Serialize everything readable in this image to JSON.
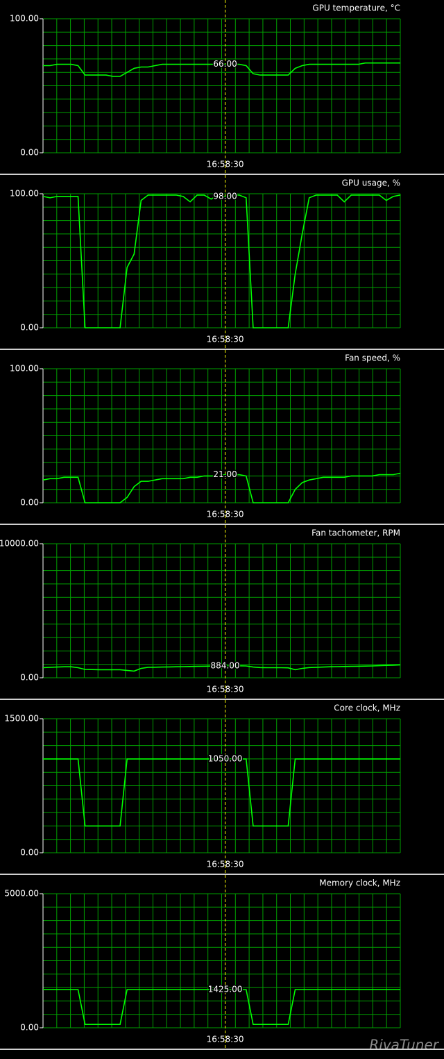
{
  "watermark": "RivaTuner",
  "chart_data": [
    {
      "type": "line",
      "title": "GPU temperature, °C",
      "ylim": [
        0,
        100
      ],
      "yticks": [
        {
          "value": 0,
          "label": "0.00"
        },
        {
          "value": 100,
          "label": "100.00"
        }
      ],
      "grid": true,
      "categories": [
        null,
        null,
        null,
        null,
        null,
        null,
        null,
        null,
        null,
        null,
        null,
        null,
        null,
        null,
        null,
        null,
        null,
        null,
        null,
        null,
        null,
        null,
        null,
        null,
        null,
        null,
        "16:58:30",
        null,
        null,
        null,
        null,
        null,
        null,
        null,
        null,
        null,
        null,
        null,
        null,
        null,
        null,
        null,
        null,
        null,
        null,
        null,
        null,
        null,
        null,
        null,
        null,
        null
      ],
      "series": [
        {
          "color": "#00ff00",
          "values": [
            65,
            65,
            66,
            66,
            66,
            65,
            58,
            58,
            58,
            58,
            57,
            57,
            60,
            63,
            64,
            64,
            65,
            66,
            66,
            66,
            66,
            66,
            66,
            66,
            66,
            66,
            66,
            66,
            66,
            65,
            59,
            58,
            58,
            58,
            58,
            58,
            63,
            65,
            66,
            66,
            66,
            66,
            66,
            66,
            66,
            66,
            67,
            67,
            67,
            67,
            67,
            67
          ],
          "value_labels": [
            null,
            null,
            null,
            null,
            null,
            null,
            null,
            null,
            null,
            null,
            null,
            null,
            null,
            null,
            null,
            null,
            null,
            null,
            null,
            null,
            null,
            null,
            null,
            null,
            null,
            null,
            "66.00",
            null,
            null,
            null,
            null,
            null,
            null,
            null,
            null,
            null,
            null,
            null,
            null,
            null,
            null,
            null,
            null,
            null,
            null,
            null,
            null,
            null,
            null,
            null,
            null,
            null
          ]
        }
      ]
    },
    {
      "type": "line",
      "title": "GPU usage, %",
      "ylim": [
        0,
        100
      ],
      "yticks": [
        {
          "value": 0,
          "label": "0.00"
        },
        {
          "value": 100,
          "label": "100.00"
        }
      ],
      "grid": true,
      "categories": [
        null,
        null,
        null,
        null,
        null,
        null,
        null,
        null,
        null,
        null,
        null,
        null,
        null,
        null,
        null,
        null,
        null,
        null,
        null,
        null,
        null,
        null,
        null,
        null,
        null,
        null,
        "16:58:30",
        null,
        null,
        null,
        null,
        null,
        null,
        null,
        null,
        null,
        null,
        null,
        null,
        null,
        null,
        null,
        null,
        null,
        null,
        null,
        null,
        null,
        null,
        null,
        null,
        null
      ],
      "series": [
        {
          "color": "#00ff00",
          "values": [
            98,
            97,
            98,
            98,
            98,
            98,
            0,
            0,
            0,
            0,
            0,
            0,
            45,
            55,
            95,
            99,
            99,
            99,
            99,
            99,
            98,
            94,
            99,
            99,
            96,
            99,
            98,
            99,
            99,
            97,
            0,
            0,
            0,
            0,
            0,
            0,
            40,
            70,
            97,
            99,
            99,
            99,
            99,
            94,
            99,
            99,
            99,
            99,
            99,
            95,
            98,
            99
          ],
          "value_labels": [
            null,
            null,
            null,
            null,
            null,
            null,
            null,
            null,
            null,
            null,
            null,
            null,
            null,
            null,
            null,
            null,
            null,
            null,
            null,
            null,
            null,
            null,
            null,
            null,
            null,
            null,
            "98.00",
            null,
            null,
            null,
            null,
            null,
            null,
            null,
            null,
            null,
            null,
            null,
            null,
            null,
            null,
            null,
            null,
            null,
            null,
            null,
            null,
            null,
            null,
            null,
            null,
            null
          ]
        }
      ]
    },
    {
      "type": "line",
      "title": "Fan speed, %",
      "ylim": [
        0,
        100
      ],
      "yticks": [
        {
          "value": 0,
          "label": "0.00"
        },
        {
          "value": 100,
          "label": "100.00"
        }
      ],
      "grid": true,
      "categories": [
        null,
        null,
        null,
        null,
        null,
        null,
        null,
        null,
        null,
        null,
        null,
        null,
        null,
        null,
        null,
        null,
        null,
        null,
        null,
        null,
        null,
        null,
        null,
        null,
        null,
        null,
        "16:58:30",
        null,
        null,
        null,
        null,
        null,
        null,
        null,
        null,
        null,
        null,
        null,
        null,
        null,
        null,
        null,
        null,
        null,
        null,
        null,
        null,
        null,
        null,
        null,
        null,
        null
      ],
      "series": [
        {
          "color": "#00ff00",
          "values": [
            17,
            18,
            18,
            19,
            19,
            19,
            0,
            0,
            0,
            0,
            0,
            0,
            4,
            12,
            16,
            16,
            17,
            18,
            18,
            18,
            18,
            19,
            19,
            20,
            20,
            20,
            21,
            21,
            21,
            20,
            0,
            0,
            0,
            0,
            0,
            0,
            10,
            15,
            17,
            18,
            19,
            19,
            19,
            19,
            20,
            20,
            20,
            20,
            21,
            21,
            21,
            22
          ],
          "value_labels": [
            null,
            null,
            null,
            null,
            null,
            null,
            null,
            null,
            null,
            null,
            null,
            null,
            null,
            null,
            null,
            null,
            null,
            null,
            null,
            null,
            null,
            null,
            null,
            null,
            null,
            null,
            "21.00",
            null,
            null,
            null,
            null,
            null,
            null,
            null,
            null,
            null,
            null,
            null,
            null,
            null,
            null,
            null,
            null,
            null,
            null,
            null,
            null,
            null,
            null,
            null,
            null,
            null
          ]
        }
      ]
    },
    {
      "type": "line",
      "title": "Fan tachometer, RPM",
      "ylim": [
        0,
        10000
      ],
      "yticks": [
        {
          "value": 0,
          "label": "0.00"
        },
        {
          "value": 10000,
          "label": "10000.00"
        }
      ],
      "grid": true,
      "categories": [
        null,
        null,
        null,
        null,
        null,
        null,
        null,
        null,
        null,
        null,
        null,
        null,
        null,
        null,
        null,
        null,
        null,
        null,
        null,
        null,
        null,
        null,
        null,
        null,
        null,
        null,
        "16:58:30",
        null,
        null,
        null,
        null,
        null,
        null,
        null,
        null,
        null,
        null,
        null,
        null,
        null,
        null,
        null,
        null,
        null,
        null,
        null,
        null,
        null,
        null,
        null,
        null,
        null
      ],
      "series": [
        {
          "color": "#00ff00",
          "values": [
            750,
            780,
            800,
            820,
            820,
            750,
            620,
            610,
            600,
            600,
            600,
            600,
            550,
            500,
            700,
            780,
            790,
            800,
            810,
            820,
            830,
            840,
            850,
            860,
            870,
            880,
            884,
            890,
            890,
            880,
            800,
            760,
            750,
            750,
            750,
            740,
            600,
            700,
            760,
            780,
            800,
            820,
            830,
            840,
            850,
            860,
            870,
            880,
            900,
            920,
            940,
            960
          ],
          "value_labels": [
            null,
            null,
            null,
            null,
            null,
            null,
            null,
            null,
            null,
            null,
            null,
            null,
            null,
            null,
            null,
            null,
            null,
            null,
            null,
            null,
            null,
            null,
            null,
            null,
            null,
            null,
            "884.00",
            null,
            null,
            null,
            null,
            null,
            null,
            null,
            null,
            null,
            null,
            null,
            null,
            null,
            null,
            null,
            null,
            null,
            null,
            null,
            null,
            null,
            null,
            null,
            null,
            null
          ]
        }
      ]
    },
    {
      "type": "line",
      "title": "Core clock, MHz",
      "ylim": [
        0,
        1500
      ],
      "yticks": [
        {
          "value": 0,
          "label": "0.00"
        },
        {
          "value": 1500,
          "label": "1500.00"
        }
      ],
      "grid": true,
      "categories": [
        null,
        null,
        null,
        null,
        null,
        null,
        null,
        null,
        null,
        null,
        null,
        null,
        null,
        null,
        null,
        null,
        null,
        null,
        null,
        null,
        null,
        null,
        null,
        null,
        null,
        null,
        "16:58:30",
        null,
        null,
        null,
        null,
        null,
        null,
        null,
        null,
        null,
        null,
        null,
        null,
        null,
        null,
        null,
        null,
        null,
        null,
        null,
        null,
        null,
        null,
        null,
        null,
        null
      ],
      "series": [
        {
          "color": "#00ff00",
          "values": [
            1050,
            1050,
            1050,
            1050,
            1050,
            1050,
            300,
            300,
            300,
            300,
            300,
            300,
            1050,
            1050,
            1050,
            1050,
            1050,
            1050,
            1050,
            1050,
            1050,
            1050,
            1050,
            1050,
            1050,
            1050,
            1050,
            1050,
            1050,
            1050,
            300,
            300,
            300,
            300,
            300,
            300,
            1050,
            1050,
            1050,
            1050,
            1050,
            1050,
            1050,
            1050,
            1050,
            1050,
            1050,
            1050,
            1050,
            1050,
            1050,
            1050
          ],
          "value_labels": [
            null,
            null,
            null,
            null,
            null,
            null,
            null,
            null,
            null,
            null,
            null,
            null,
            null,
            null,
            null,
            null,
            null,
            null,
            null,
            null,
            null,
            null,
            null,
            null,
            null,
            null,
            "1050.00",
            null,
            null,
            null,
            null,
            null,
            null,
            null,
            null,
            null,
            null,
            null,
            null,
            null,
            null,
            null,
            null,
            null,
            null,
            null,
            null,
            null,
            null,
            null,
            null,
            null
          ]
        }
      ]
    },
    {
      "type": "line",
      "title": "Memory clock, MHz",
      "ylim": [
        0,
        5000
      ],
      "yticks": [
        {
          "value": 0,
          "label": "0.00"
        },
        {
          "value": 5000,
          "label": "5000.00"
        }
      ],
      "grid": true,
      "categories": [
        null,
        null,
        null,
        null,
        null,
        null,
        null,
        null,
        null,
        null,
        null,
        null,
        null,
        null,
        null,
        null,
        null,
        null,
        null,
        null,
        null,
        null,
        null,
        null,
        null,
        null,
        "16:58:30",
        null,
        null,
        null,
        null,
        null,
        null,
        null,
        null,
        null,
        null,
        null,
        null,
        null,
        null,
        null,
        null,
        null,
        null,
        null,
        null,
        null,
        null,
        null,
        null,
        null
      ],
      "series": [
        {
          "color": "#00ff00",
          "values": [
            1425,
            1425,
            1425,
            1425,
            1425,
            1425,
            125,
            125,
            125,
            125,
            125,
            125,
            1425,
            1425,
            1425,
            1425,
            1425,
            1425,
            1425,
            1425,
            1425,
            1425,
            1425,
            1425,
            1425,
            1425,
            1425,
            1425,
            1425,
            1425,
            125,
            125,
            125,
            125,
            125,
            125,
            1425,
            1425,
            1425,
            1425,
            1425,
            1425,
            1425,
            1425,
            1425,
            1425,
            1425,
            1425,
            1425,
            1425,
            1425,
            1425
          ],
          "value_labels": [
            null,
            null,
            null,
            null,
            null,
            null,
            null,
            null,
            null,
            null,
            null,
            null,
            null,
            null,
            null,
            null,
            null,
            null,
            null,
            null,
            null,
            null,
            null,
            null,
            null,
            null,
            "1425.00",
            null,
            null,
            null,
            null,
            null,
            null,
            null,
            null,
            null,
            null,
            null,
            null,
            null,
            null,
            null,
            null,
            null,
            null,
            null,
            null,
            null,
            null,
            null,
            null,
            null
          ]
        }
      ]
    }
  ]
}
